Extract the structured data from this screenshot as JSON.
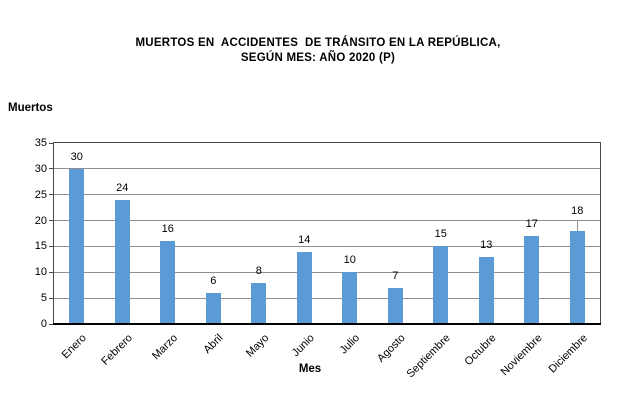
{
  "page": {
    "background_color": "#ffffff",
    "text_color": "#000000"
  },
  "chart_data": {
    "type": "bar",
    "title_line1": "MUERTOS EN  ACCIDENTES  DE TRÁNSITO EN LA REPÚBLICA,",
    "title_line2": "SEGÚN MES: AÑO 2020 (P)",
    "ylabel": "Muertos",
    "xlabel": "Mes",
    "categories": [
      "Enero",
      "Febrero",
      "Marzo",
      "Abril",
      "Mayo",
      "Junio",
      "Julio",
      "Agosto",
      "Septiembre",
      "Octubre",
      "Noviembre",
      "Diciembre"
    ],
    "values": [
      30,
      24,
      16,
      6,
      8,
      14,
      10,
      7,
      15,
      13,
      17,
      18
    ],
    "data_labels_visible": true,
    "ylim": [
      0,
      35
    ],
    "yticks": [
      0,
      5,
      10,
      15,
      20,
      25,
      30,
      35
    ],
    "grid": true,
    "legend": "none",
    "x_labels_rotation_deg": -45,
    "leader_line_index": 11,
    "bar_color": "#5B9BD5",
    "gridline_color": "#8f8f8f",
    "plot_border_color": "#4a4a4a",
    "axis_line_color": "#000000"
  }
}
